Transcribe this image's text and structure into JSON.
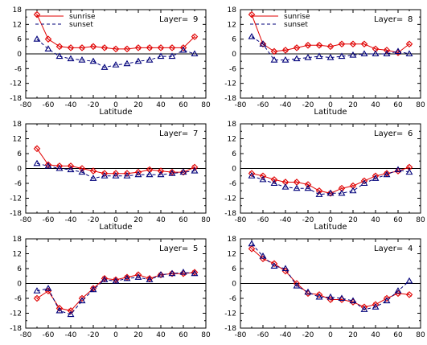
{
  "colors": {
    "sunrise": "#e00000",
    "sunset": "#00007a",
    "axis": "#000000"
  },
  "chart_data": [
    {
      "type": "line",
      "panel_label": "Layer=",
      "layer": "9",
      "xlabel": "Latitude",
      "ylabel": "",
      "xlim": [
        -80,
        80
      ],
      "ylim": [
        -18,
        18
      ],
      "xticks": [
        "-80",
        "-60",
        "-40",
        "-20",
        "0",
        "20",
        "40",
        "60",
        "80"
      ],
      "yticks": [
        "18",
        "12",
        "6",
        "0",
        "-6",
        "-12",
        "-18"
      ],
      "legend": [
        "sunrise",
        "sunset"
      ],
      "legend_position": "top-left",
      "zero_line": true,
      "series": [
        {
          "name": "sunrise",
          "x": [
            -70,
            -60,
            -50,
            -40,
            -30,
            -20,
            -10,
            0,
            10,
            20,
            30,
            40,
            50,
            60,
            70
          ],
          "y": [
            16,
            6,
            3,
            2.5,
            2.5,
            3,
            2.5,
            2,
            2,
            2.5,
            2.5,
            2.5,
            2.5,
            2.5,
            7
          ]
        },
        {
          "name": "sunset",
          "x": [
            -70,
            -60,
            -50,
            -40,
            -30,
            -20,
            -10,
            0,
            10,
            20,
            30,
            40,
            50,
            60,
            70
          ],
          "y": [
            6,
            2,
            -1,
            -2,
            -2.5,
            -3,
            -5.5,
            -4.5,
            -4,
            -3,
            -2.5,
            -1,
            -1,
            1.5,
            0
          ]
        }
      ]
    },
    {
      "type": "line",
      "panel_label": "Layer=",
      "layer": "8",
      "xlabel": "Latitude",
      "ylabel": "",
      "xlim": [
        -80,
        80
      ],
      "ylim": [
        -18,
        18
      ],
      "xticks": [
        "-80",
        "-60",
        "-40",
        "-20",
        "0",
        "20",
        "40",
        "60",
        "80"
      ],
      "yticks": [
        "18",
        "12",
        "6",
        "0",
        "-6",
        "-12",
        "-18"
      ],
      "legend": [
        "sunrise",
        "sunset"
      ],
      "legend_position": "top-left",
      "zero_line": true,
      "series": [
        {
          "name": "sunrise",
          "x": [
            -70,
            -60,
            -50,
            -40,
            -30,
            -20,
            -10,
            0,
            10,
            20,
            30,
            40,
            50,
            60,
            70
          ],
          "y": [
            16,
            4,
            1,
            1.5,
            2.5,
            3.5,
            3.5,
            3,
            4,
            4,
            4,
            2,
            1.5,
            0.5,
            4
          ]
        },
        {
          "name": "sunset",
          "x": [
            -70,
            -60,
            -50,
            -40,
            -30,
            -20,
            -10,
            0,
            10,
            20,
            30,
            40,
            50,
            60,
            70
          ],
          "y": [
            7,
            4,
            -2.5,
            -2.5,
            -2,
            -1.5,
            -1,
            -1.5,
            -1,
            -0.5,
            0,
            0,
            0,
            1,
            0
          ]
        }
      ]
    },
    {
      "type": "line",
      "panel_label": "Layer=",
      "layer": "7",
      "xlabel": "Latitude",
      "ylabel": "",
      "xlim": [
        -80,
        80
      ],
      "ylim": [
        -18,
        18
      ],
      "xticks": [
        "-80",
        "-60",
        "-40",
        "-20",
        "0",
        "20",
        "40",
        "60",
        "80"
      ],
      "yticks": [
        "18",
        "12",
        "6",
        "0",
        "-6",
        "-12",
        "-18"
      ],
      "legend": [],
      "legend_position": "none",
      "zero_line": true,
      "series": [
        {
          "name": "sunrise",
          "x": [
            -70,
            -60,
            -50,
            -40,
            -30,
            -20,
            -10,
            0,
            10,
            20,
            30,
            40,
            50,
            60,
            70
          ],
          "y": [
            8,
            1.5,
            1,
            1,
            0,
            -1,
            -2,
            -2,
            -2,
            -1.5,
            -0.5,
            -1,
            -1.5,
            -1.5,
            0.5
          ]
        },
        {
          "name": "sunset",
          "x": [
            -70,
            -60,
            -50,
            -40,
            -30,
            -20,
            -10,
            0,
            10,
            20,
            30,
            40,
            50,
            60,
            70
          ],
          "y": [
            2,
            1,
            0,
            -0.5,
            -1.5,
            -4,
            -3,
            -3,
            -3,
            -2.5,
            -2.5,
            -2.5,
            -2,
            -1.5,
            -1
          ]
        }
      ]
    },
    {
      "type": "line",
      "panel_label": "Layer=",
      "layer": "6",
      "xlabel": "Latitude",
      "ylabel": "",
      "xlim": [
        -80,
        80
      ],
      "ylim": [
        -18,
        18
      ],
      "xticks": [
        "-80",
        "-60",
        "-40",
        "-20",
        "0",
        "20",
        "40",
        "60",
        "80"
      ],
      "yticks": [
        "18",
        "12",
        "6",
        "0",
        "-6",
        "-12",
        "-18"
      ],
      "legend": [],
      "legend_position": "none",
      "zero_line": true,
      "series": [
        {
          "name": "sunrise",
          "x": [
            -70,
            -60,
            -50,
            -40,
            -30,
            -20,
            -10,
            0,
            10,
            20,
            30,
            40,
            50,
            60,
            70
          ],
          "y": [
            -2,
            -3,
            -4.5,
            -5.5,
            -5.5,
            -6.5,
            -9,
            -10,
            -8,
            -7,
            -5,
            -3,
            -2,
            -1,
            0.5
          ]
        },
        {
          "name": "sunset",
          "x": [
            -70,
            -60,
            -50,
            -40,
            -30,
            -20,
            -10,
            0,
            10,
            20,
            30,
            40,
            50,
            60,
            70
          ],
          "y": [
            -3,
            -4.5,
            -6,
            -7.5,
            -8,
            -8,
            -10.5,
            -10,
            -10,
            -9,
            -6,
            -4,
            -2.5,
            -0.5,
            -1.5
          ]
        }
      ]
    },
    {
      "type": "line",
      "panel_label": "Layer=",
      "layer": "5",
      "xlabel": "",
      "ylabel": "",
      "xlim": [
        -80,
        80
      ],
      "ylim": [
        -18,
        18
      ],
      "xticks": [
        "-80",
        "-60",
        "-40",
        "-20",
        "0",
        "20",
        "40",
        "60",
        "80"
      ],
      "yticks": [
        "18",
        "12",
        "6",
        "0",
        "-6",
        "-12",
        "-18"
      ],
      "legend": [],
      "legend_position": "none",
      "zero_line": true,
      "series": [
        {
          "name": "sunrise",
          "x": [
            -70,
            -60,
            -50,
            -40,
            -30,
            -20,
            -10,
            0,
            10,
            20,
            30,
            40,
            50,
            60,
            70
          ],
          "y": [
            -6,
            -3,
            -10,
            -11,
            -6,
            -2,
            2,
            1.5,
            2.5,
            3.5,
            2,
            3.5,
            4,
            4,
            4.5
          ]
        },
        {
          "name": "sunset",
          "x": [
            -70,
            -60,
            -50,
            -40,
            -30,
            -20,
            -10,
            0,
            10,
            20,
            30,
            40,
            50,
            60,
            70
          ],
          "y": [
            -3,
            -2,
            -11,
            -12.5,
            -7,
            -2.5,
            1.5,
            1,
            2,
            2.5,
            1.5,
            3.5,
            4,
            4.5,
            4
          ]
        }
      ]
    },
    {
      "type": "line",
      "panel_label": "Layer=",
      "layer": "4",
      "xlabel": "",
      "ylabel": "",
      "xlim": [
        -80,
        80
      ],
      "ylim": [
        -18,
        18
      ],
      "xticks": [
        "-80",
        "-60",
        "-40",
        "-20",
        "0",
        "20",
        "40",
        "60",
        "80"
      ],
      "yticks": [
        "18",
        "12",
        "6",
        "0",
        "-6",
        "-12",
        "-18"
      ],
      "legend": [],
      "legend_position": "none",
      "zero_line": true,
      "series": [
        {
          "name": "sunrise",
          "x": [
            -70,
            -60,
            -50,
            -40,
            -30,
            -20,
            -10,
            0,
            10,
            20,
            30,
            40,
            50,
            60,
            70
          ],
          "y": [
            14,
            10,
            8,
            5,
            0,
            -4,
            -4.5,
            -6.5,
            -6.5,
            -7.5,
            -9.5,
            -8.5,
            -6,
            -4,
            -4.5
          ]
        },
        {
          "name": "sunset",
          "x": [
            -70,
            -60,
            -50,
            -40,
            -30,
            -20,
            -10,
            0,
            10,
            20,
            30,
            40,
            50,
            60,
            70
          ],
          "y": [
            16,
            11,
            7,
            6,
            -1,
            -3.5,
            -5.5,
            -5.5,
            -6,
            -7,
            -10.5,
            -9.5,
            -7,
            -3,
            1
          ]
        }
      ]
    }
  ]
}
